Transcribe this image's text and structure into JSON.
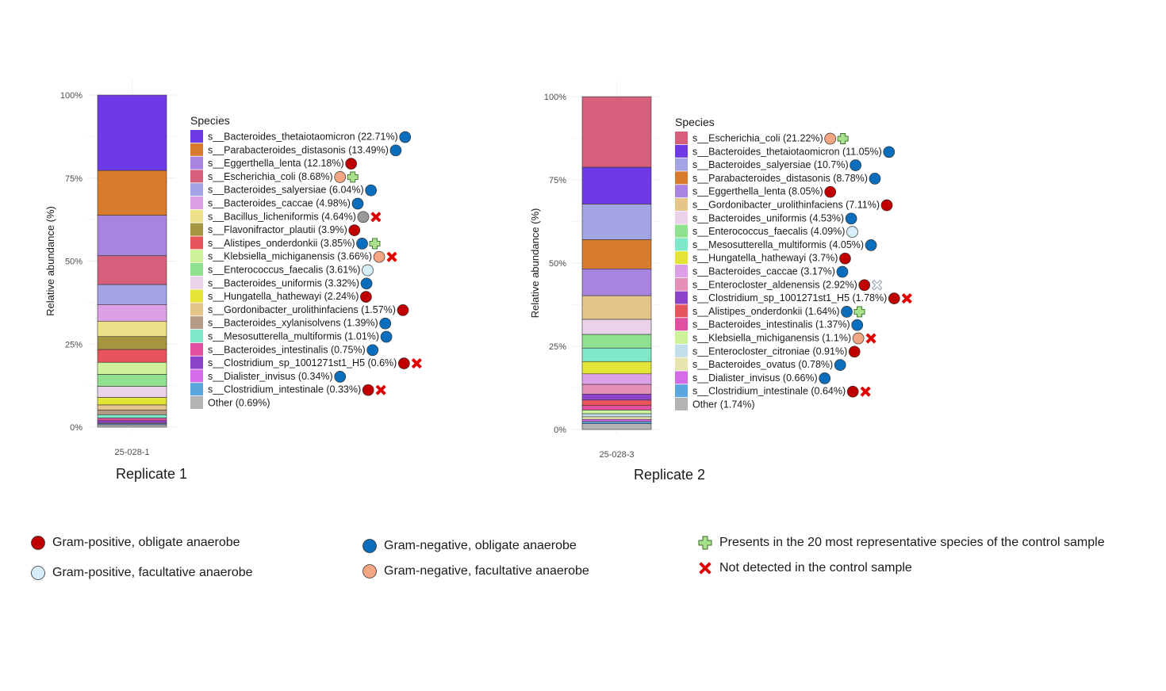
{
  "chart_data": [
    {
      "type": "bar",
      "stacked": true,
      "ylabel": "Relative abundance (%)",
      "yticks": [
        "0%",
        "25%",
        "50%",
        "75%",
        "100%"
      ],
      "ylim": [
        0,
        100
      ],
      "category": "25-028-1",
      "caption": "Replicate 1",
      "legend_title": "Species",
      "series": [
        {
          "name": "s__Bacteroides_thetaiotaomicron",
          "value": 22.71,
          "label": "s__Bacteroides_thetaiotaomicron (22.71%)",
          "color": "#6d3ae6",
          "markers": [
            "gneg-obl"
          ]
        },
        {
          "name": "s__Parabacteroides_distasonis",
          "value": 13.49,
          "label": "s__Parabacteroides_distasonis (13.49%)",
          "color": "#d97b2f",
          "markers": [
            "gneg-obl"
          ]
        },
        {
          "name": "s__Eggerthella_lenta",
          "value": 12.18,
          "label": "s__Eggerthella_lenta (12.18%)",
          "color": "#a983e0",
          "markers": [
            "gpos-obl"
          ]
        },
        {
          "name": "s__Escherichia_coli",
          "value": 8.68,
          "label": "s__Escherichia_coli (8.68%)",
          "color": "#d65f7c",
          "markers": [
            "gneg-fac",
            "plus"
          ]
        },
        {
          "name": "s__Bacteroides_salyersiae",
          "value": 6.04,
          "label": "s__Bacteroides_salyersiae (6.04%)",
          "color": "#a3a4e3",
          "markers": [
            "gneg-obl"
          ]
        },
        {
          "name": "s__Bacteroides_caccae",
          "value": 4.98,
          "label": "s__Bacteroides_caccae (4.98%)",
          "color": "#dca0e6",
          "markers": [
            "gneg-obl"
          ]
        },
        {
          "name": "s__Bacillus_licheniformis",
          "value": 4.64,
          "label": "s__Bacillus_licheniformis (4.64%)",
          "color": "#ece188",
          "markers": [
            "grey",
            "cross"
          ]
        },
        {
          "name": "s__Flavonifractor_plautii",
          "value": 3.9,
          "label": "s__Flavonifractor_plautii (3.9%)",
          "color": "#a59540",
          "markers": [
            "gpos-obl"
          ]
        },
        {
          "name": "s__Alistipes_onderdonkii",
          "value": 3.85,
          "label": "s__Alistipes_onderdonkii (3.85%)",
          "color": "#e8545c",
          "markers": [
            "gneg-obl",
            "plus"
          ]
        },
        {
          "name": "s__Klebsiella_michiganensis",
          "value": 3.66,
          "label": "s__Klebsiella_michiganensis (3.66%)",
          "color": "#cdf29a",
          "markers": [
            "gneg-fac",
            "cross"
          ]
        },
        {
          "name": "s__Enterococcus_faecalis",
          "value": 3.61,
          "label": "s__Enterococcus_faecalis (3.61%)",
          "color": "#8fe08f",
          "markers": [
            "gpos-fac"
          ]
        },
        {
          "name": "s__Bacteroides_uniformis",
          "value": 3.32,
          "label": "s__Bacteroides_uniformis (3.32%)",
          "color": "#ead3ea",
          "markers": [
            "gneg-obl"
          ]
        },
        {
          "name": "s__Hungatella_hathewayi",
          "value": 2.24,
          "label": "s__Hungatella_hathewayi (2.24%)",
          "color": "#e4e436",
          "markers": [
            "gpos-obl"
          ]
        },
        {
          "name": "s__Gordonibacter_urolithinfaciens",
          "value": 1.57,
          "label": "s__Gordonibacter_urolithinfaciens (1.57%)",
          "color": "#e4c58c",
          "markers": [
            "gpos-obl"
          ]
        },
        {
          "name": "s__Bacteroides_xylanisolvens",
          "value": 1.39,
          "label": "s__Bacteroides_xylanisolvens (1.39%)",
          "color": "#b59b85",
          "markers": [
            "gneg-obl"
          ]
        },
        {
          "name": "s__Mesosutterella_multiformis",
          "value": 1.01,
          "label": "s__Mesosutterella_multiformis (1.01%)",
          "color": "#7ee8c8",
          "markers": [
            "gneg-obl"
          ]
        },
        {
          "name": "s__Bacteroides_intestinalis",
          "value": 0.75,
          "label": "s__Bacteroides_intestinalis (0.75%)",
          "color": "#e34fa0",
          "markers": [
            "gneg-obl"
          ]
        },
        {
          "name": "s__Clostridium_sp_1001271st1_H5",
          "value": 0.6,
          "label": "s__Clostridium_sp_1001271st1_H5 (0.6%)",
          "color": "#8a43c9",
          "markers": [
            "gpos-obl",
            "cross"
          ]
        },
        {
          "name": "s__Dialister_invisus",
          "value": 0.34,
          "label": "s__Dialister_invisus (0.34%)",
          "color": "#d46be8",
          "markers": [
            "gneg-obl"
          ]
        },
        {
          "name": "s__Clostridium_intestinale",
          "value": 0.33,
          "label": "s__Clostridium_intestinale (0.33%)",
          "color": "#5ca6df",
          "markers": [
            "gpos-obl",
            "cross"
          ]
        },
        {
          "name": "Other",
          "value": 0.69,
          "label": "Other (0.69%)",
          "color": "#b3b3b3",
          "markers": []
        }
      ]
    },
    {
      "type": "bar",
      "stacked": true,
      "ylabel": "Relative abundance (%)",
      "yticks": [
        "0%",
        "25%",
        "50%",
        "75%",
        "100%"
      ],
      "ylim": [
        0,
        100
      ],
      "category": "25-028-3",
      "caption": "Replicate 2",
      "legend_title": "Species",
      "series": [
        {
          "name": "s__Escherichia_coli",
          "value": 21.22,
          "label": "s__Escherichia_coli (21.22%)",
          "color": "#d65f7c",
          "markers": [
            "gneg-fac",
            "plus"
          ]
        },
        {
          "name": "s__Bacteroides_thetaiotaomicron",
          "value": 11.05,
          "label": "s__Bacteroides_thetaiotaomicron (11.05%)",
          "color": "#6d3ae6",
          "markers": [
            "gneg-obl"
          ]
        },
        {
          "name": "s__Bacteroides_salyersiae",
          "value": 10.7,
          "label": "s__Bacteroides_salyersiae (10.7%)",
          "color": "#a3a4e3",
          "markers": [
            "gneg-obl"
          ]
        },
        {
          "name": "s__Parabacteroides_distasonis",
          "value": 8.78,
          "label": "s__Parabacteroides_distasonis (8.78%)",
          "color": "#d97b2f",
          "markers": [
            "gneg-obl"
          ]
        },
        {
          "name": "s__Eggerthella_lenta",
          "value": 8.05,
          "label": "s__Eggerthella_lenta (8.05%)",
          "color": "#a983e0",
          "markers": [
            "gpos-obl"
          ]
        },
        {
          "name": "s__Gordonibacter_urolithinfaciens",
          "value": 7.11,
          "label": "s__Gordonibacter_urolithinfaciens (7.11%)",
          "color": "#e4c58c",
          "markers": [
            "gpos-obl"
          ]
        },
        {
          "name": "s__Bacteroides_uniformis",
          "value": 4.53,
          "label": "s__Bacteroides_uniformis (4.53%)",
          "color": "#ead3ea",
          "markers": [
            "gneg-obl"
          ]
        },
        {
          "name": "s__Enterococcus_faecalis",
          "value": 4.09,
          "label": "s__Enterococcus_faecalis (4.09%)",
          "color": "#8fe08f",
          "markers": [
            "gpos-fac"
          ]
        },
        {
          "name": "s__Mesosutterella_multiformis",
          "value": 4.05,
          "label": "s__Mesosutterella_multiformis (4.05%)",
          "color": "#7ee8c8",
          "markers": [
            "gneg-obl"
          ]
        },
        {
          "name": "s__Hungatella_hathewayi",
          "value": 3.7,
          "label": "s__Hungatella_hathewayi (3.7%)",
          "color": "#e4e436",
          "markers": [
            "gpos-obl"
          ]
        },
        {
          "name": "s__Bacteroides_caccae",
          "value": 3.17,
          "label": "s__Bacteroides_caccae (3.17%)",
          "color": "#dca0e6",
          "markers": [
            "gneg-obl"
          ]
        },
        {
          "name": "s__Enterocloster_aldenensis",
          "value": 2.92,
          "label": "s__Enterocloster_aldenensis (2.92%)",
          "color": "#e48fb8",
          "markers": [
            "gpos-obl",
            "cross-white"
          ]
        },
        {
          "name": "s__Clostridium_sp_1001271st1_H5",
          "value": 1.78,
          "label": "s__Clostridium_sp_1001271st1_H5 (1.78%)",
          "color": "#8a43c9",
          "markers": [
            "gpos-obl",
            "cross"
          ]
        },
        {
          "name": "s__Alistipes_onderdonkii",
          "value": 1.64,
          "label": "s__Alistipes_onderdonkii (1.64%)",
          "color": "#e8545c",
          "markers": [
            "gneg-obl",
            "plus"
          ]
        },
        {
          "name": "s__Bacteroides_intestinalis",
          "value": 1.37,
          "label": "s__Bacteroides_intestinalis (1.37%)",
          "color": "#e34fa0",
          "markers": [
            "gneg-obl"
          ]
        },
        {
          "name": "s__Klebsiella_michiganensis",
          "value": 1.1,
          "label": "s__Klebsiella_michiganensis (1.1%)",
          "color": "#cdf29a",
          "markers": [
            "gneg-fac",
            "cross"
          ]
        },
        {
          "name": "s__Enterocloster_citroniae",
          "value": 0.91,
          "label": "s__Enterocloster_citroniae (0.91%)",
          "color": "#c3e0ea",
          "markers": [
            "gpos-obl"
          ]
        },
        {
          "name": "s__Bacteroides_ovatus",
          "value": 0.78,
          "label": "s__Bacteroides_ovatus (0.78%)",
          "color": "#e8e4b0",
          "markers": [
            "gneg-obl"
          ]
        },
        {
          "name": "s__Dialister_invisus",
          "value": 0.66,
          "label": "s__Dialister_invisus (0.66%)",
          "color": "#d46be8",
          "markers": [
            "gneg-obl"
          ]
        },
        {
          "name": "s__Clostridium_intestinale",
          "value": 0.64,
          "label": "s__Clostridium_intestinale (0.64%)",
          "color": "#5ca6df",
          "markers": [
            "gpos-obl",
            "cross"
          ]
        },
        {
          "name": "Other",
          "value": 1.74,
          "label": "Other (1.74%)",
          "color": "#b3b3b3",
          "markers": []
        }
      ]
    }
  ],
  "marker_colors": {
    "gpos-obl": "#c00000",
    "gneg-obl": "#0a6ebd",
    "gneg-fac": "#f4a582",
    "gpos-fac": "#d6eefa",
    "grey": "#9a9a9a",
    "plus": "#a8e08c",
    "cross": "#e00000"
  },
  "key": {
    "gpos_obl": "Gram-positive, obligate anaerobe",
    "gpos_fac": "Gram-positive, facultative anaerobe",
    "gneg_obl": "Gram-negative,  obligate anaerobe",
    "gneg_fac": "Gram-negative,  facultative anaerobe",
    "plus": "Presents in the 20 most representative species of the control sample",
    "cross": "Not detected in the control sample"
  }
}
